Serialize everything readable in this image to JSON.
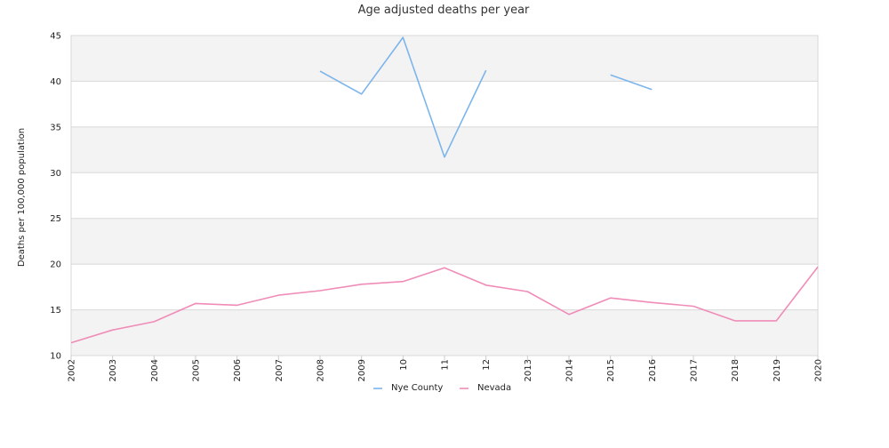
{
  "chart_data": {
    "type": "line",
    "title": "Age adjusted deaths per year",
    "xlabel": "",
    "ylabel": "Deaths per 100,000 population",
    "x": [
      "2002",
      "2003",
      "2004",
      "2005",
      "2006",
      "2007",
      "2008",
      "2009",
      "10",
      "11",
      "12",
      "2013",
      "2014",
      "2015",
      "2016",
      "2017",
      "2018",
      "2019",
      "2020"
    ],
    "y_ticks": [
      10,
      15,
      20,
      25,
      30,
      35,
      40,
      45
    ],
    "ylim": [
      10,
      45
    ],
    "grid": "alternating horizontal bands",
    "legend_position": "bottom-center",
    "series": [
      {
        "name": "Nye County",
        "color": "#7cb5ec",
        "values": [
          null,
          null,
          null,
          null,
          null,
          null,
          41.1,
          38.6,
          44.8,
          31.7,
          41.2,
          null,
          null,
          40.7,
          39.1,
          null,
          null,
          null,
          null
        ]
      },
      {
        "name": "Nevada",
        "color": "#f08cb8",
        "values": [
          11.4,
          12.8,
          13.7,
          15.7,
          15.5,
          16.6,
          17.1,
          17.8,
          18.1,
          19.6,
          17.7,
          17.0,
          14.5,
          16.3,
          15.8,
          15.4,
          13.8,
          13.8,
          19.7
        ]
      }
    ]
  }
}
